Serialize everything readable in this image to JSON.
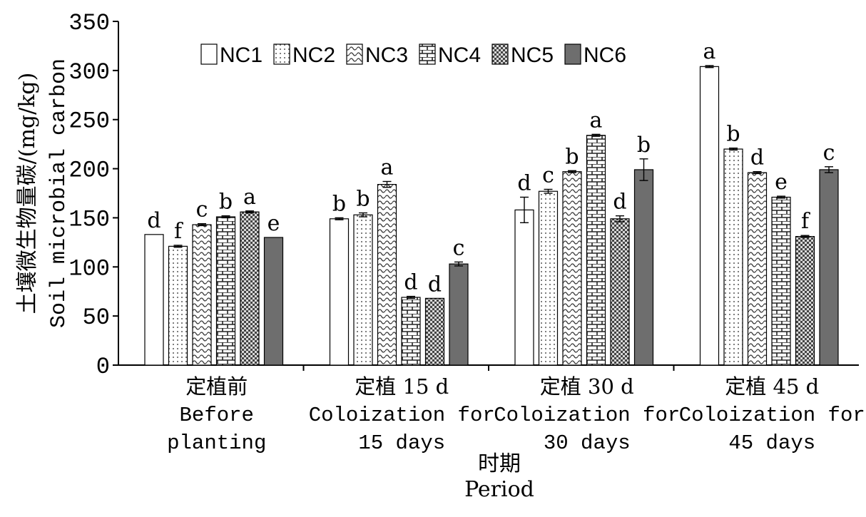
{
  "chart_data": {
    "type": "bar",
    "ylabel_line1": "土壤微生物量碳/(mg/kg)",
    "ylabel_line2": "Soil microbial carbon",
    "xlabel_line1": "时期",
    "xlabel_line2": "Period",
    "ylim": [
      0,
      350
    ],
    "yticks": [
      0,
      50,
      100,
      150,
      200,
      250,
      300,
      350
    ],
    "grid": false,
    "legend_position": "top",
    "categories": [
      {
        "zh": "定植前",
        "en1": "Before",
        "en2": "planting"
      },
      {
        "zh": "定植 15 d",
        "en1": "Coloization for",
        "en2": "15 days"
      },
      {
        "zh": "定植 30 d",
        "en1": "Coloization for",
        "en2": "30 days"
      },
      {
        "zh": "定植 45 d",
        "en1": "Coloization for",
        "en2": "45 days"
      }
    ],
    "series": [
      {
        "name": "NC1",
        "pattern": "white",
        "values": [
          133,
          149,
          158,
          304
        ],
        "errors": [
          0,
          1,
          13,
          1
        ],
        "letters": [
          "d",
          "b",
          "d",
          "a"
        ]
      },
      {
        "name": "NC2",
        "pattern": "dots",
        "values": [
          121,
          153,
          177,
          220
        ],
        "errors": [
          1,
          2,
          2,
          1
        ],
        "letters": [
          "f",
          "b",
          "c",
          "b"
        ]
      },
      {
        "name": "NC3",
        "pattern": "waves",
        "values": [
          143,
          184,
          197,
          196
        ],
        "errors": [
          1,
          3,
          1,
          1
        ],
        "letters": [
          "c",
          "a",
          "b",
          "d"
        ]
      },
      {
        "name": "NC4",
        "pattern": "bricks",
        "values": [
          151,
          69,
          234,
          171
        ],
        "errors": [
          1,
          1,
          1,
          1
        ],
        "letters": [
          "b",
          "d",
          "a",
          "e"
        ]
      },
      {
        "name": "NC5",
        "pattern": "checker",
        "values": [
          156,
          68,
          149,
          131
        ],
        "errors": [
          1,
          0,
          3,
          1
        ],
        "letters": [
          "a",
          "d",
          "d",
          "f"
        ]
      },
      {
        "name": "NC6",
        "pattern": "gray",
        "values": [
          130,
          103,
          199,
          199
        ],
        "errors": [
          0,
          2,
          11,
          3
        ],
        "letters": [
          "e",
          "c",
          "b",
          "c"
        ]
      }
    ]
  }
}
